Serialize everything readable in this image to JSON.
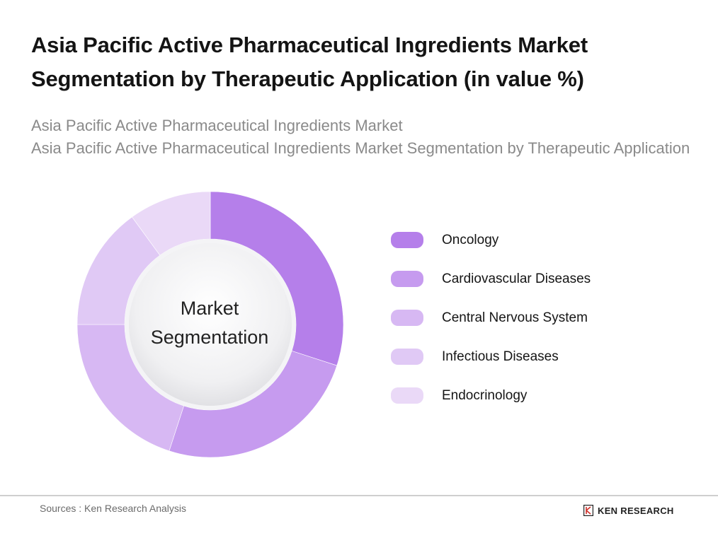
{
  "title": "Asia Pacific Active Pharmaceutical Ingredients Market Segmentation by Therapeutic Application (in value %)",
  "subtitle_lines": [
    "Asia Pacific Active Pharmaceutical Ingredients Market",
    "Asia Pacific Active Pharmaceutical Ingredients Market Segmentation by Therapeutic Application"
  ],
  "chart_data": {
    "type": "pie",
    "variant": "donut",
    "center_label_lines": [
      "Market",
      "Segmentation"
    ],
    "categories": [
      "Oncology",
      "Cardiovascular Diseases",
      "Central Nervous System",
      "Infectious Diseases",
      "Endocrinology"
    ],
    "values": [
      30,
      25,
      20,
      15,
      10
    ],
    "colors": [
      "#b57fea",
      "#c69bef",
      "#d7b8f3",
      "#e0c9f5",
      "#ead9f7"
    ],
    "legend_position": "right",
    "start_angle": "top, clockwise"
  },
  "footer": {
    "source": "Sources : Ken Research Analysis",
    "brand": "KEN RESEARCH"
  }
}
